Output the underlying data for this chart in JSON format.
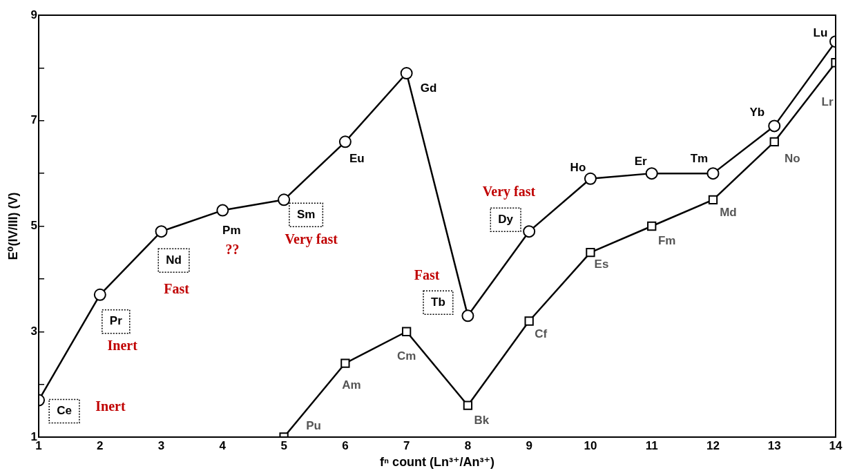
{
  "chart_data": {
    "type": "line",
    "xlabel": "fⁿ count (Ln³⁺/An³⁺)",
    "ylabel": "E⁰(IV/III) (V)",
    "x": [
      1,
      2,
      3,
      4,
      5,
      6,
      7,
      8,
      9,
      10,
      11,
      12,
      13,
      14
    ],
    "series": [
      {
        "color": "#000000",
        "marker": "circle",
        "values": [
          1.7,
          3.7,
          4.9,
          5.3,
          5.5,
          6.6,
          7.9,
          3.3,
          4.9,
          5.9,
          6.0,
          6.0,
          6.9,
          8.5
        ],
        "value_labels": [
          "Ce",
          "Pr",
          "Nd",
          "Pm",
          "Sm",
          "Eu",
          "Gd",
          "Tb",
          "Dy",
          "Ho",
          "Er",
          "Tm",
          "Yb",
          "Lu"
        ]
      },
      {
        "color": "#000000",
        "marker": "square",
        "values": [
          null,
          null,
          null,
          null,
          1.0,
          2.4,
          3.0,
          1.6,
          3.2,
          4.5,
          5.0,
          5.5,
          6.6,
          8.1
        ],
        "value_labels": [
          null,
          null,
          null,
          null,
          "Pu",
          "Am",
          "Cm",
          "Bk",
          "Cf",
          "Es",
          "Fm",
          "Md",
          "No",
          "Lr"
        ]
      }
    ],
    "xlim": [
      1,
      14
    ],
    "xticks": [
      1,
      2,
      3,
      4,
      5,
      6,
      7,
      8,
      9,
      10,
      11,
      12,
      13,
      14
    ],
    "ylim": [
      1,
      9
    ],
    "yticks": [
      1,
      {
        "value": 2,
        "label": null
      },
      3,
      {
        "value": 4,
        "label": null
      },
      5,
      {
        "value": 6,
        "label": null
      },
      7,
      {
        "value": 8,
        "label": null
      },
      9
    ],
    "grid": false,
    "legend": false,
    "line_style": "solid",
    "annotations": [
      "Inert",
      "Inert",
      "Fast",
      "??",
      "Very fast",
      "Fast",
      "Very fast"
    ]
  }
}
